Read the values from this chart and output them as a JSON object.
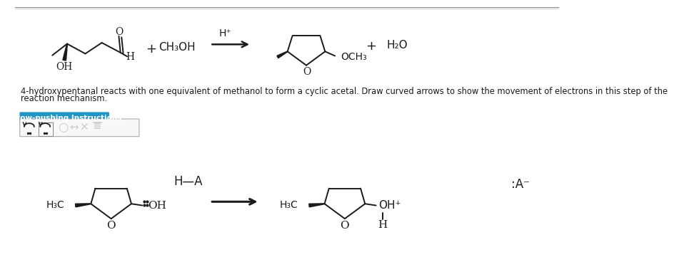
{
  "bg_color": "#ffffff",
  "lc": "#1a1a1a",
  "tc": "#1a1a1a",
  "button_bg": "#2196c4",
  "button_text_color": "#ffffff",
  "button_text": "Arrow-pushing Instructions",
  "desc_line1": "4-hydroxypentanal reacts with one equivalent of methanol to form a cyclic acetal. Draw curved arrows to show the movement of electrons in this step of the",
  "desc_line2": "reaction mechanism.",
  "lw": 1.4
}
